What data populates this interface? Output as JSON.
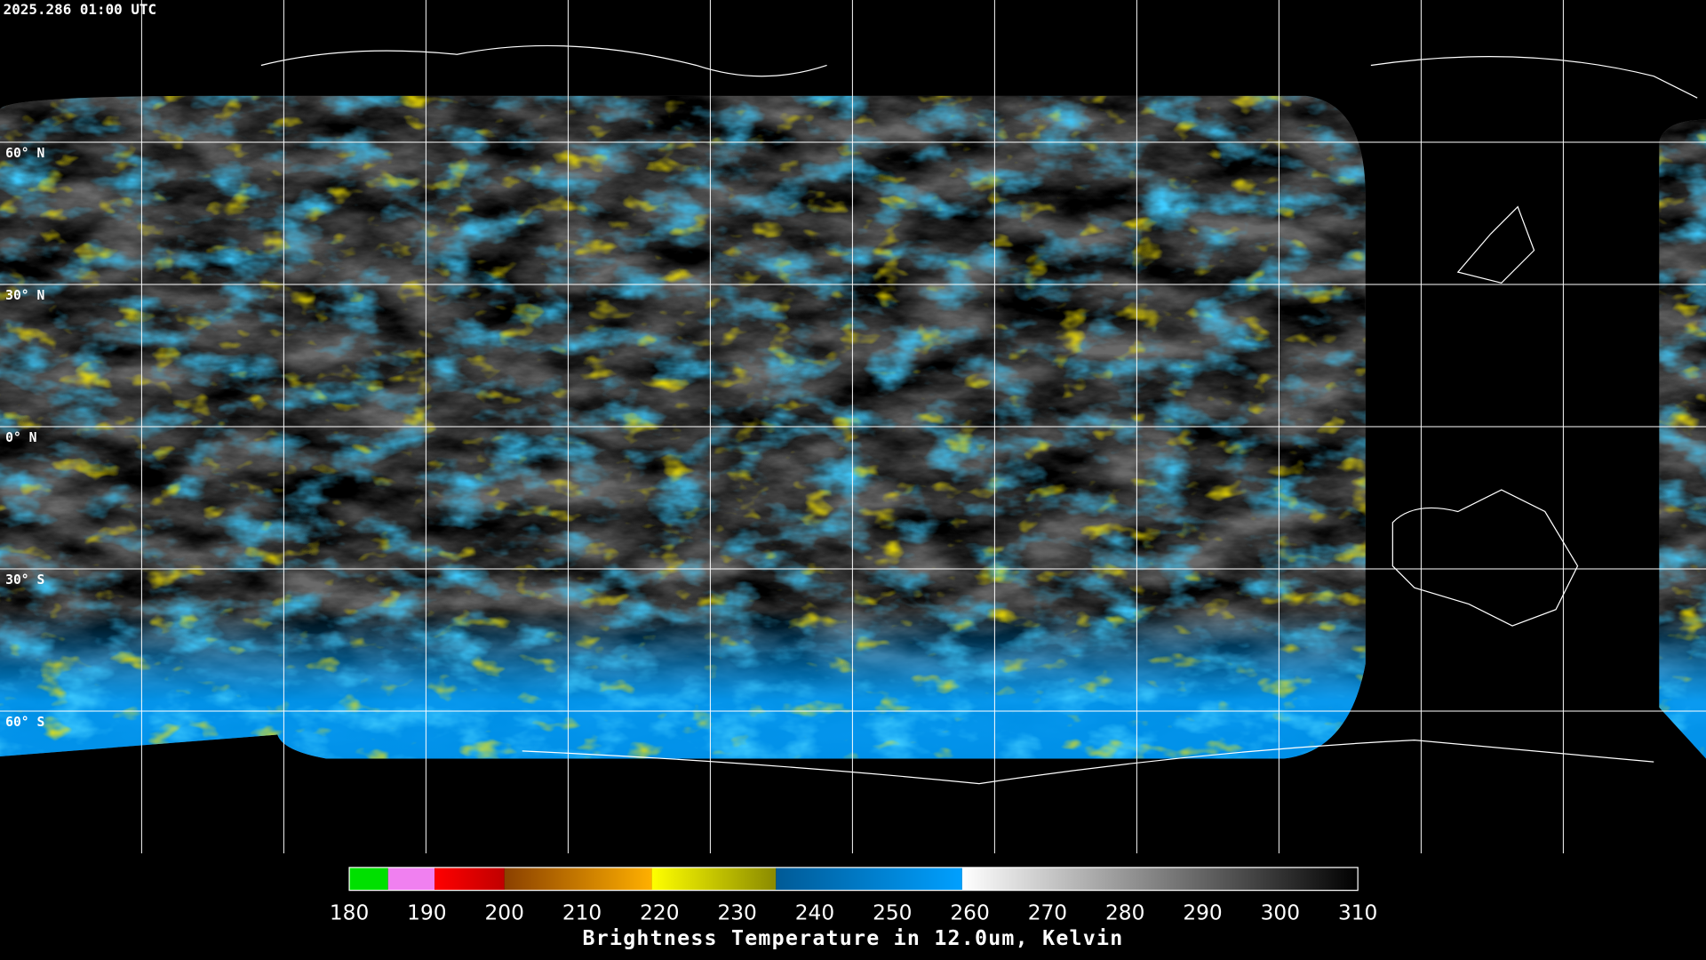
{
  "timestamp": "2025.286 01:00 UTC",
  "latitude_labels": [
    "60° N",
    "30° N",
    "0° N",
    "30° S",
    "60° S"
  ],
  "colorbar": {
    "title": "Brightness Temperature in 12.0um, Kelvin",
    "range": [
      180,
      310
    ],
    "ticks": [
      180,
      190,
      200,
      210,
      220,
      230,
      240,
      250,
      260,
      270,
      280,
      290,
      300,
      310
    ],
    "segments": [
      {
        "from": 180,
        "to": 185,
        "colors": [
          "#00e000",
          "#00e000"
        ]
      },
      {
        "from": 185,
        "to": 191,
        "colors": [
          "#f080f0",
          "#f080f0"
        ]
      },
      {
        "from": 191,
        "to": 200,
        "colors": [
          "#ff0000",
          "#c00000"
        ]
      },
      {
        "from": 200,
        "to": 219,
        "colors": [
          "#8a4000",
          "#ffb000"
        ]
      },
      {
        "from": 219,
        "to": 235,
        "colors": [
          "#ffff00",
          "#8a8a00"
        ]
      },
      {
        "from": 235,
        "to": 259,
        "colors": [
          "#005a96",
          "#00a0ff"
        ]
      },
      {
        "from": 259,
        "to": 310,
        "colors": [
          "#ffffff",
          "#000000"
        ]
      }
    ]
  }
}
